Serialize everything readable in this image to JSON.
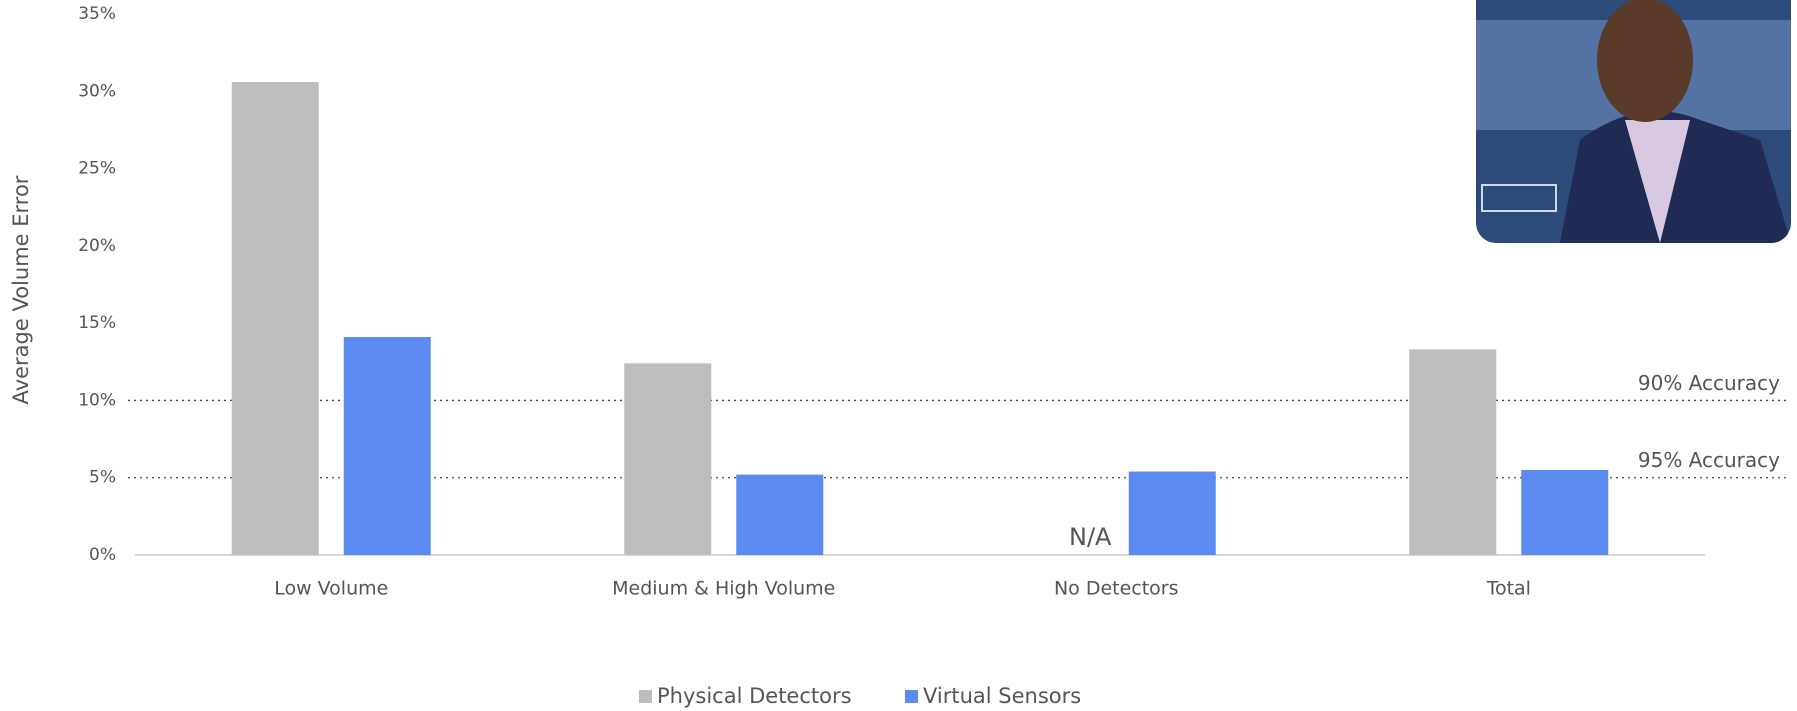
{
  "chart_data": {
    "type": "bar",
    "y_label": "Average Volume Error",
    "categories": [
      "Low Volume",
      "Medium & High Volume",
      "No Detectors",
      "Total"
    ],
    "series": [
      {
        "name": "Physical Detectors",
        "color": "#bdbdbd",
        "values": [
          30.6,
          12.4,
          null,
          13.3
        ]
      },
      {
        "name": "Virtual Sensors",
        "color": "#5b8bf0",
        "values": [
          14.1,
          5.2,
          5.4,
          5.5
        ]
      }
    ],
    "ylim": [
      0,
      35
    ],
    "yticks": [
      {
        "value": 0,
        "label": "0%"
      },
      {
        "value": 5,
        "label": "5%"
      },
      {
        "value": 10,
        "label": "10%"
      },
      {
        "value": 15,
        "label": "15%"
      },
      {
        "value": 20,
        "label": "20%"
      },
      {
        "value": 25,
        "label": "25%"
      },
      {
        "value": 30,
        "label": "30%"
      },
      {
        "value": 35,
        "label": "35%"
      }
    ],
    "reference_lines": [
      {
        "value": 10,
        "label": "90% Accuracy"
      },
      {
        "value": 5,
        "label": "95% Accuracy"
      }
    ],
    "annotations": [
      {
        "text": "N/A",
        "category": "No Detectors"
      }
    ],
    "grid": false,
    "legend": "bottom"
  }
}
